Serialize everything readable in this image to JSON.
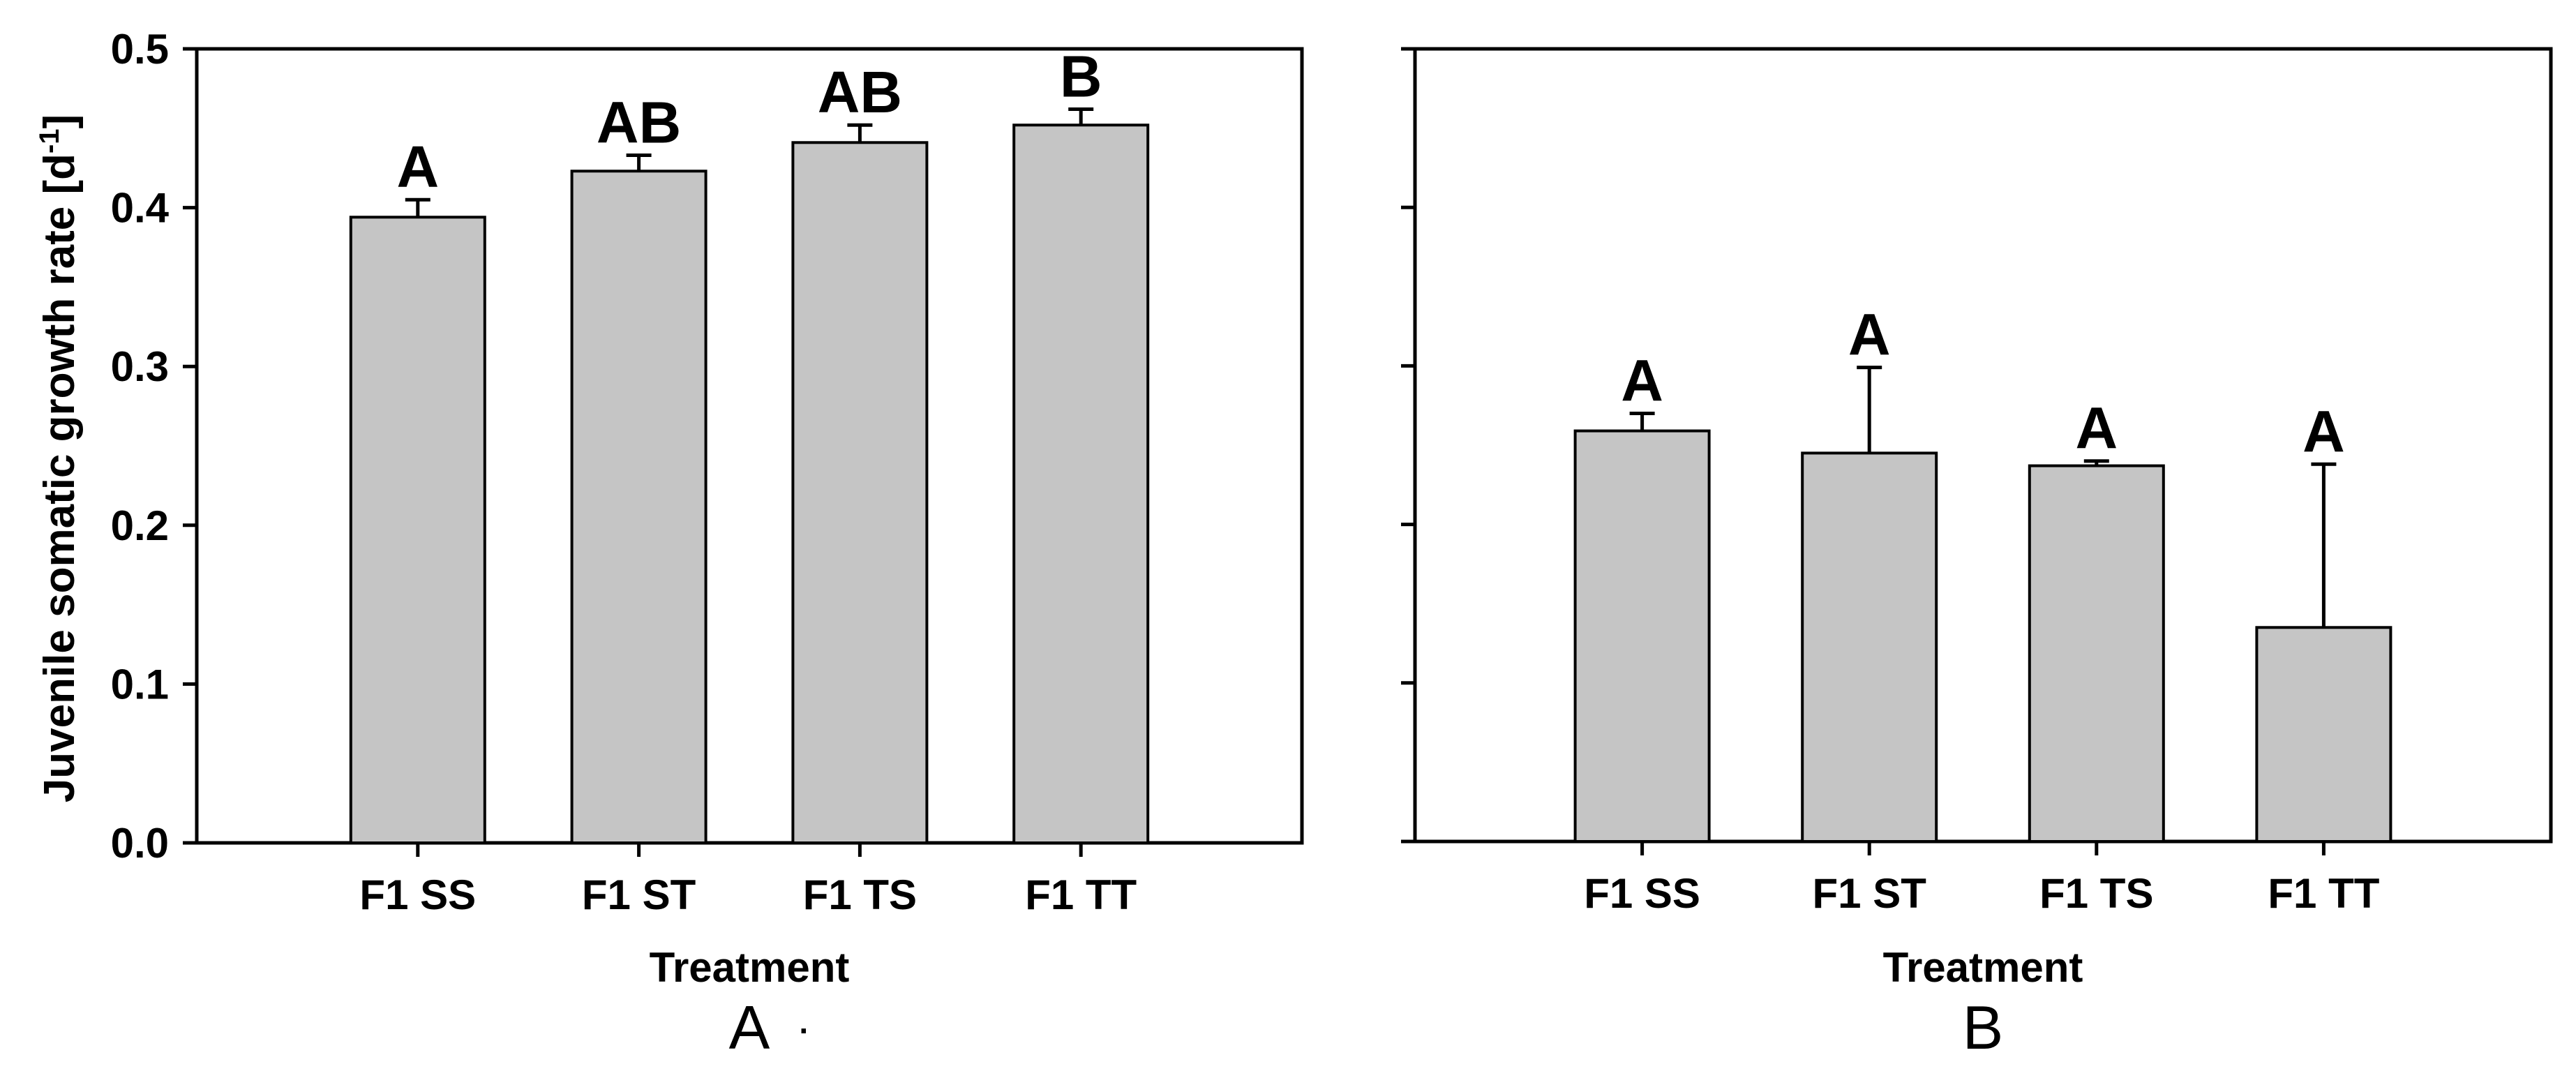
{
  "figure": {
    "background": "#ffffff",
    "text_color": "#000000",
    "y_axis_title": {
      "main": "Juvenile somatic growth rate [d",
      "sup": "-1",
      "end": "]"
    },
    "panel_a_x_title": "Treatment",
    "panel_b_x_title": "Treatment",
    "panel_a_label": "A",
    "panel_a_label_mark": "·",
    "panel_b_label": "B"
  },
  "chart_data": [
    {
      "type": "bar",
      "panel": "A",
      "categories": [
        "F1 SS",
        "F1 ST",
        "F1 TS",
        "F1 TT"
      ],
      "values": [
        0.394,
        0.423,
        0.441,
        0.452
      ],
      "errors": [
        0.011,
        0.01,
        0.011,
        0.01
      ],
      "sig_letters": [
        "A",
        "AB",
        "AB",
        "B"
      ],
      "xlabel": "Treatment",
      "ylabel": "Juvenile somatic growth rate [d-1]",
      "ylim": [
        0,
        0.5
      ],
      "yticks": [
        0,
        0.1,
        0.2,
        0.3,
        0.4,
        0.5
      ],
      "ytick_labels": [
        "0.0",
        "0.1",
        "0.2",
        "0.3",
        "0.4",
        "0.5"
      ],
      "grid": false,
      "legend": "none",
      "bar_fill": "#c5c5c5",
      "bar_stroke": "#000000",
      "axis_color": "#000000"
    },
    {
      "type": "bar",
      "panel": "B",
      "categories": [
        "F1 SS",
        "F1 ST",
        "F1 TS",
        "F1 TT"
      ],
      "values": [
        0.259,
        0.245,
        0.237,
        0.135
      ],
      "errors": [
        0.011,
        0.054,
        0.003,
        0.103
      ],
      "sig_letters": [
        "A",
        "A",
        "A",
        "A"
      ],
      "xlabel": "Treatment",
      "ylabel": "",
      "ylim": [
        0,
        0.5
      ],
      "yticks": [
        0,
        0.1,
        0.2,
        0.3,
        0.4,
        0.5
      ],
      "ytick_labels": [
        "",
        "",
        "",
        "",
        "",
        ""
      ],
      "grid": false,
      "legend": "none",
      "bar_fill": "#c5c5c5",
      "bar_stroke": "#000000",
      "axis_color": "#000000"
    }
  ]
}
